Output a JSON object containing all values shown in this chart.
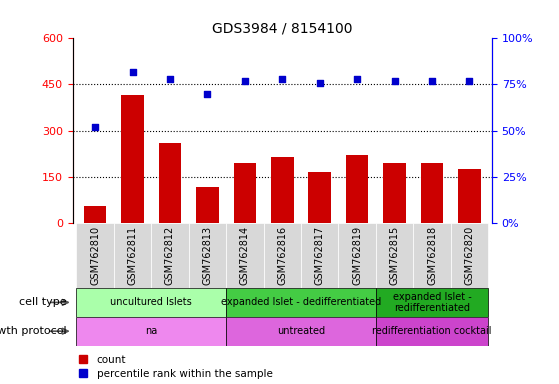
{
  "title": "GDS3984 / 8154100",
  "samples": [
    "GSM762810",
    "GSM762811",
    "GSM762812",
    "GSM762813",
    "GSM762814",
    "GSM762816",
    "GSM762817",
    "GSM762819",
    "GSM762815",
    "GSM762818",
    "GSM762820"
  ],
  "counts": [
    55,
    415,
    260,
    115,
    195,
    215,
    165,
    220,
    195,
    195,
    175
  ],
  "percentiles": [
    52,
    82,
    78,
    70,
    77,
    78,
    76,
    78,
    77,
    77,
    77
  ],
  "ylim_left": [
    0,
    600
  ],
  "ylim_right": [
    0,
    100
  ],
  "yticks_left": [
    0,
    150,
    300,
    450,
    600
  ],
  "yticks_right": [
    0,
    25,
    50,
    75,
    100
  ],
  "ytick_labels_right": [
    "0%",
    "25%",
    "50%",
    "75%",
    "100%"
  ],
  "hlines": [
    150,
    300,
    450
  ],
  "bar_color": "#cc0000",
  "dot_color": "#0000cc",
  "cell_type_groups": [
    {
      "label": "uncultured Islets",
      "start": 0,
      "end": 4,
      "color": "#aaffaa"
    },
    {
      "label": "expanded Islet - dedifferentiated",
      "start": 4,
      "end": 8,
      "color": "#44cc44"
    },
    {
      "label": "expanded Islet -\nredifferentiated",
      "start": 8,
      "end": 11,
      "color": "#22aa22"
    }
  ],
  "growth_protocol_groups": [
    {
      "label": "na",
      "start": 0,
      "end": 4,
      "color": "#ee88ee"
    },
    {
      "label": "untreated",
      "start": 4,
      "end": 8,
      "color": "#dd66dd"
    },
    {
      "label": "redifferentiation cocktail",
      "start": 8,
      "end": 11,
      "color": "#cc44cc"
    }
  ],
  "bg_color": "#d8d8d8",
  "bar_width": 0.6
}
